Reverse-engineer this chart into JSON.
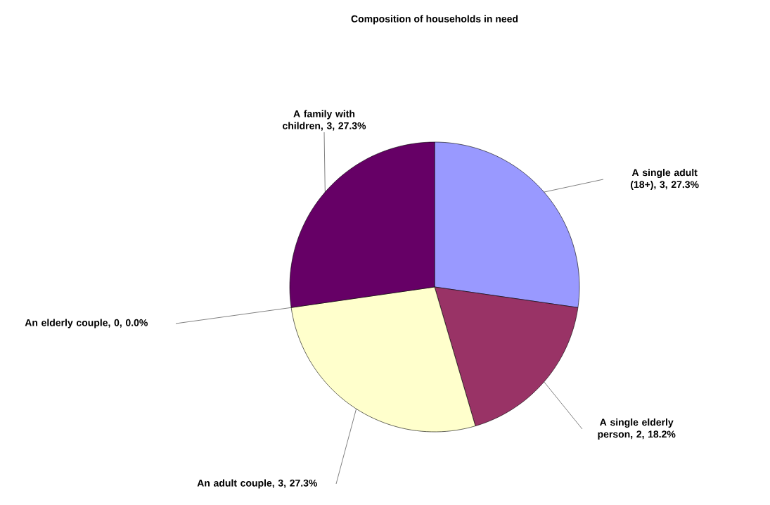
{
  "chart_data": {
    "type": "pie",
    "title": "Composition of households in need",
    "categories": [
      "A single adult (18+), 3, 27.3%",
      "A single elderly person, 2, 18.2%",
      "An adult couple, 3, 27.3%",
      "An elderly couple, 0, 0.0%",
      "A family with children, 3, 27.3%"
    ],
    "values": [
      3,
      2,
      3,
      0,
      3
    ],
    "colors": [
      "#9999ff",
      "#993366",
      "#ffffcc",
      "#ccffff",
      "#660066"
    ]
  }
}
